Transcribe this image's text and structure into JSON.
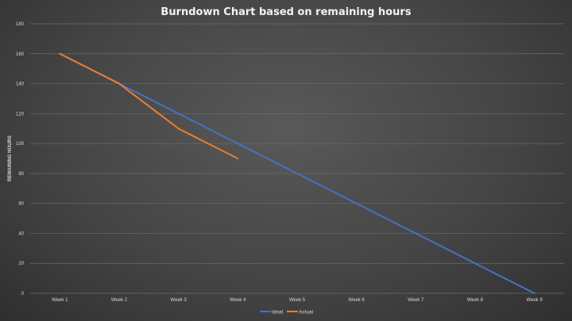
{
  "chart_data": {
    "type": "line",
    "title": "Burndown Chart based on remaining hours",
    "xlabel": "",
    "ylabel": "REMAINING HOURS",
    "categories": [
      "Week 1",
      "Week 2",
      "Week 3",
      "Week 4",
      "Week 5",
      "Week 6",
      "Week 7",
      "Week 8",
      "Week 9"
    ],
    "ylim": [
      0,
      180
    ],
    "yticks": [
      0,
      20,
      40,
      60,
      80,
      100,
      120,
      140,
      160,
      180
    ],
    "grid": true,
    "legend_position": "bottom",
    "series": [
      {
        "name": "Ideal",
        "color": "#4472c4",
        "values": [
          160,
          140,
          120,
          100,
          80,
          60,
          40,
          20,
          0
        ]
      },
      {
        "name": "Actual",
        "color": "#ed7d31",
        "values": [
          160,
          140,
          110,
          90,
          null,
          null,
          null,
          null,
          null
        ]
      }
    ]
  }
}
